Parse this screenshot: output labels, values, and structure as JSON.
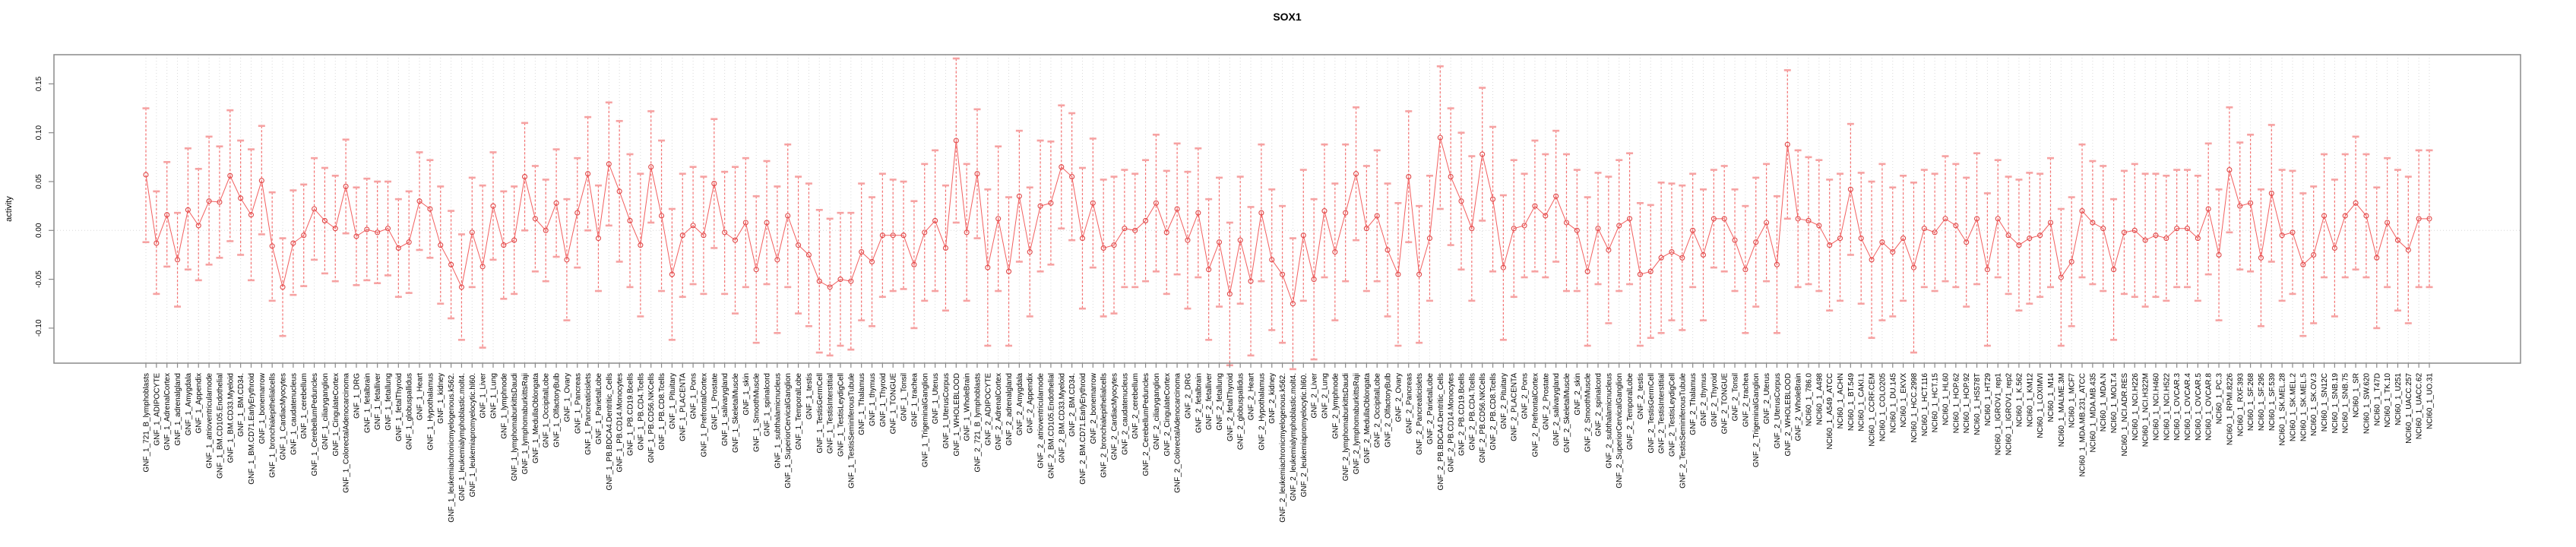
{
  "chart_data": {
    "type": "scatter",
    "subtype": "points-with-error-bars-connected-line",
    "title": "SOX1",
    "xlabel": "",
    "ylabel": "activity",
    "yticks": [
      0.15,
      0.1,
      0.05,
      0.0,
      -0.05,
      -0.1
    ],
    "ylim": [
      -0.136,
      0.178
    ],
    "grid": "dotted vertical gridline per category, dotted horizontal line at y=0",
    "legend_position": "none",
    "colors": {
      "line": "#f25f5f",
      "point_stroke": "#e04848",
      "whisker": "#f47070",
      "cap": "#f6a2a2",
      "grid": "#d9d9d9",
      "box": "#8a8a8a",
      "tick": "#666666",
      "text": "#000000",
      "background": "#ffffff"
    },
    "categories": [
      "GNF_1_721_B_lymphoblasts",
      "GNF_1_ADIPOCYTE",
      "GNF_1_AdrenalCortex",
      "GNF_1_adrenalgland",
      "GNF_1_Amygdala",
      "GNF_1_Appendix",
      "GNF_1_atrioventricularnode",
      "GNF_1_BM.CD105.Endothelial",
      "GNF_1_BM.CD33.Myeloid",
      "GNF_1_BM.CD34.",
      "GNF_1_BM.CD71.EarlyErythroid",
      "GNF_1_bonemarrow",
      "GNF_1_bronchialepithelialcells",
      "GNF_1_CardiacMyocytes",
      "GNF_1_caudatenucleus",
      "GNF_1_cerebellum",
      "GNF_1_CerebellumPeduncles",
      "GNF_1_ciliaryganglion",
      "GNF_1_CingulateCortex",
      "GNF_1_ColorectalAdenocarcinoma",
      "GNF_1_DRG",
      "GNF_1_fetalbrain",
      "GNF_1_fetalliver",
      "GNF_1_fetallung",
      "GNF_1_fetalThyroid",
      "GNF_1_globuspallidus",
      "GNF_1_Heart",
      "GNF_1_Hypothalamus",
      "GNF_1_kidney",
      "GNF_1_leukemiachronicmyelogenous.k562.",
      "GNF_1_leukemialymphoblastic.molt4.",
      "GNF_1_leukemiapromyelocytic.hl60.",
      "GNF_1_Liver",
      "GNF_1_Lung",
      "GNF_1_lymphnode",
      "GNF_1_lymphomaburkittsDaudi",
      "GNF_1_lymphomaburkittsRaji",
      "GNF_1_MedullaOblongata",
      "GNF_1_OccipitalLobe",
      "GNF_1_OlfactoryBulb",
      "GNF_1_Ovary",
      "GNF_1_Pancreas",
      "GNF_1_Pancreaticislets",
      "GNF_1_ParietalLobe",
      "GNF_1_PB.BDCA4.Dentritic_Cells",
      "GNF_1_PB.CD14.Monocytes",
      "GNF_1_PB.CD19.Bcells",
      "GNF_1_PB.CD4.Tcells",
      "GNF_1_PB.CD56.NKCells",
      "GNF_1_PB.CD8.Tcells",
      "GNF_1_Pituitary",
      "GNF_1_PLACENTA",
      "GNF_1_Pons",
      "GNF_1_PrefrontalCortex",
      "GNF_1_Prostate",
      "GNF_1_salivarygland",
      "GNF_1_SkeletalMuscle",
      "GNF_1_skin",
      "GNF_1_SmoothMuscle",
      "GNF_1_spinalcord",
      "GNF_1_subthalamicnucleus",
      "GNF_1_SuperiorCervicalGanglion",
      "GNF_1_TemporalLobe",
      "GNF_1_testis",
      "GNF_1_TestisGermCell",
      "GNF_1_TestisInterstitial",
      "GNF_1_TestisLeydigCell",
      "GNF_1_TestisSeminiferousTubule",
      "GNF_1_Thalamus",
      "GNF_1_thymus",
      "GNF_1_Thyroid",
      "GNF_1_TONGUE",
      "GNF_1_Tonsil",
      "GNF_1_trachea",
      "GNF_1_TrigeminalGanglion",
      "GNF_1_Uterus",
      "GNF_1_UterusCorpus",
      "GNF_1_WHOLEBLOOD",
      "GNF_1_WholeBrain",
      "GNF_2_721_B_lymphoblasts",
      "GNF_2_ADIPOCYTE",
      "GNF_2_AdrenalCortex",
      "GNF_2_adrenalgland",
      "GNF_2_Amygdala",
      "GNF_2_Appendix",
      "GNF_2_atrioventricularnode",
      "GNF_2_BM.CD105.Endothelial",
      "GNF_2_BM.CD33.Myeloid",
      "GNF_2_BM.CD34.",
      "GNF_2_BM.CD71.EarlyErythroid",
      "GNF_2_bonemarrow",
      "GNF_2_bronchialepithelialcells",
      "GNF_2_CardiacMyocytes",
      "GNF_2_caudatenucleus",
      "GNF_2_cerebellum",
      "GNF_2_CerebellumPeduncles",
      "GNF_2_ciliaryganglion",
      "GNF_2_CingulateCortex",
      "GNF_2_ColorectalAdenocarcinoma",
      "GNF_2_DRG",
      "GNF_2_fetalbrain",
      "GNF_2_fetalliver",
      "GNF_2_fetallung",
      "GNF_2_fetalThyroid",
      "GNF_2_globuspallidus",
      "GNF_2_Heart",
      "GNF_2_Hypothalamus",
      "GNF_2_kidney",
      "GNF_2_leukemiachronicmyelogenous.k562.",
      "GNF_2_leukemialymphoblastic.molt4.",
      "GNF_2_leukemiapromyelocytic.hl60.",
      "GNF_2_Liver",
      "GNF_2_Lung",
      "GNF_2_lymphnode",
      "GNF_2_lymphomaburkittsDaudi",
      "GNF_2_lymphomaburkittsRaji",
      "GNF_2_MedullaOblongata",
      "GNF_2_OccipitalLobe",
      "GNF_2_OlfactoryBulb",
      "GNF_2_Ovary",
      "GNF_2_Pancreas",
      "GNF_2_Pancreaticislets",
      "GNF_2_ParietalLobe",
      "GNF_2_PB.BDCA4.Dentritic_Cells",
      "GNF_2_PB.CD14.Monocytes",
      "GNF_2_PB.CD19.Bcells",
      "GNF_2_PB.CD4.Tcells",
      "GNF_2_PB.CD56.NKCells",
      "GNF_2_PB.CD8.Tcells",
      "GNF_2_Pituitary",
      "GNF_2_PLACENTA",
      "GNF_2_Pons",
      "GNF_2_PrefrontalCortex",
      "GNF_2_Prostate",
      "GNF_2_salivarygland",
      "GNF_2_SkeletalMuscle",
      "GNF_2_skin",
      "GNF_2_SmoothMuscle",
      "GNF_2_spinalcord",
      "GNF_2_subthalamicnucleus",
      "GNF_2_SuperiorCervicalGanglion",
      "GNF_2_TemporalLobe",
      "GNF_2_testis",
      "GNF_2_TestisGermCell",
      "GNF_2_TestisInterstitial",
      "GNF_2_TestisLeydigCell",
      "GNF_2_TestisSeminiferousTubule",
      "GNF_2_Thalamus",
      "GNF_2_thymus",
      "GNF_2_Thyroid",
      "GNF_2_TONGUE",
      "GNF_2_Tonsil",
      "GNF_2_trachea",
      "GNF_2_TrigeminalGanglion",
      "GNF_2_Uterus",
      "GNF_2_UterusCorpus",
      "GNF_2_WHOLEBLOOD",
      "GNF_2_WholeBrain",
      "NCI60_1_786.0",
      "NCI60_1_A498",
      "NCI60_1_A549_ATCC",
      "NCI60_1_ACHN",
      "NCI60_1_BT.549",
      "NCI60_1_CAKI.1",
      "NCI60_1_CCRF.CEM",
      "NCI60_1_COLO205",
      "NCI60_1_DU.145",
      "NCI60_1_EKVX",
      "NCI60_1_HCC.2998",
      "NCI60_1_HCT.116",
      "NCI60_1_HCT.15",
      "NCI60_1_HL60",
      "NCI60_1_HOP.62",
      "NCI60_1_HOP.92",
      "NCI60_1_HS578T",
      "NCI60_1_HT29",
      "NCI60_1_IGROV1_rep1",
      "NCI60_1_IGROV1_rep2",
      "NCI60_1_K.562",
      "NCI60_1_KM12",
      "NCI60_1_LOXIMVI",
      "NCI60_1_M14",
      "NCI60_1_MALME.3M",
      "NCI60_1_MCF7",
      "NCI60_1_MDA.MB.231_ATCC",
      "NCI60_1_MDA.MB.435",
      "NCI60_1_MDA.N",
      "NCI60_1_MOLT.4",
      "NCI60_1_NCI.ADR.RES",
      "NCI60_1_NCI.H226",
      "NCI60_1_NCI.H322M",
      "NCI60_1_NCI.H460",
      "NCI60_1_NCI.H522",
      "NCI60_1_OVCAR.3",
      "NCI60_1_OVCAR.4",
      "NCI60_1_OVCAR.5",
      "NCI60_1_OVCAR.8",
      "NCI60_1_PC.3",
      "NCI60_1_RPMI.8226",
      "NCI60_1_RXF.393",
      "NCI60_1_SF.268",
      "NCI60_1_SF.295",
      "NCI60_1_SF.539",
      "NCI60_1_SK.MEL.28",
      "NCI60_1_SK.MEL.2",
      "NCI60_1_SK.MEL.5",
      "NCI60_1_SK.OV.3",
      "NCI60_1_SN12C",
      "NCI60_1_SNB.19",
      "NCI60_1_SNB.75",
      "NCI60_1_SR",
      "NCI60_1_SW.620",
      "NCI60_1_T47D",
      "NCI60_1_TK.10",
      "NCI60_1_U251",
      "NCI60_1_UACC.257",
      "NCI60_1_UACC.62",
      "NCI60_1_UO.31"
    ],
    "series": [
      {
        "name": "activity",
        "mean": [
          0.057,
          -0.013,
          0.016,
          -0.03,
          0.021,
          0.005,
          0.03,
          0.029,
          0.056,
          0.033,
          0.016,
          0.051,
          -0.016,
          -0.058,
          -0.013,
          -0.005,
          0.022,
          0.01,
          0.002,
          0.045,
          -0.006,
          0.001,
          -0.002,
          0.002,
          -0.018,
          -0.012,
          0.03,
          0.022,
          -0.015,
          -0.035,
          -0.058,
          -0.002,
          -0.037,
          0.025,
          -0.015,
          -0.01,
          0.055,
          0.012,
          0.0,
          0.028,
          -0.03,
          0.018,
          0.058,
          -0.008,
          0.068,
          0.04,
          0.01,
          -0.015,
          0.065,
          0.015,
          -0.045,
          -0.005,
          0.005,
          -0.005,
          0.048,
          -0.002,
          -0.01,
          0.008,
          -0.04,
          0.008,
          -0.03,
          0.015,
          -0.015,
          -0.025,
          -0.052,
          -0.058,
          -0.05,
          -0.052,
          -0.022,
          -0.032,
          -0.005,
          -0.005,
          -0.005,
          -0.035,
          -0.002,
          0.01,
          -0.018,
          0.092,
          -0.002,
          0.058,
          -0.038,
          0.012,
          -0.042,
          0.035,
          -0.022,
          0.025,
          0.028,
          0.065,
          0.055,
          -0.008,
          0.028,
          -0.018,
          -0.015,
          0.002,
          0.0,
          0.01,
          0.028,
          -0.002,
          0.022,
          -0.01,
          0.018,
          -0.04,
          -0.012,
          -0.065,
          -0.01,
          -0.052,
          0.018,
          -0.03,
          -0.045,
          -0.075,
          -0.005,
          -0.05,
          0.02,
          -0.022,
          0.018,
          0.058,
          0.002,
          0.015,
          -0.02,
          -0.045,
          0.055,
          -0.045,
          -0.008,
          0.095,
          0.055,
          0.03,
          0.002,
          0.078,
          0.032,
          -0.038,
          0.002,
          0.005,
          0.025,
          0.015,
          0.035,
          0.008,
          0.0,
          -0.042,
          0.002,
          -0.02,
          0.005,
          0.012,
          -0.045,
          -0.042,
          -0.028,
          -0.022,
          -0.028,
          0.0,
          -0.025,
          0.012,
          0.012,
          -0.01,
          -0.04,
          -0.012,
          0.008,
          -0.035,
          0.088,
          0.012,
          0.01,
          0.005,
          -0.015,
          -0.008,
          0.042,
          -0.008,
          -0.03,
          -0.012,
          -0.022,
          -0.008,
          -0.038,
          0.002,
          -0.002,
          0.012,
          0.005,
          -0.012,
          0.012,
          -0.04,
          0.012,
          -0.005,
          -0.015,
          -0.008,
          -0.005,
          0.008,
          -0.048,
          -0.032,
          0.02,
          0.008,
          0.002,
          -0.04,
          -0.002,
          0.0,
          -0.01,
          -0.005,
          -0.008,
          0.002,
          0.002,
          -0.008,
          0.022,
          -0.025,
          0.062,
          0.025,
          0.028,
          -0.028,
          0.038,
          -0.005,
          -0.002,
          -0.035,
          -0.025,
          0.015,
          -0.018,
          0.015,
          0.028,
          0.015,
          -0.028,
          0.008,
          -0.01,
          -0.02,
          0.012,
          0.012
        ],
        "lower": [
          -0.012,
          -0.065,
          -0.037,
          -0.078,
          -0.04,
          -0.051,
          -0.035,
          -0.028,
          -0.011,
          -0.025,
          -0.051,
          -0.004,
          -0.072,
          -0.108,
          -0.066,
          -0.057,
          -0.03,
          -0.044,
          -0.052,
          -0.003,
          -0.056,
          -0.051,
          -0.054,
          -0.046,
          -0.068,
          -0.064,
          -0.02,
          -0.028,
          -0.075,
          -0.09,
          -0.112,
          -0.058,
          -0.12,
          -0.03,
          -0.07,
          -0.065,
          0.0,
          -0.042,
          -0.052,
          -0.027,
          -0.092,
          -0.038,
          0.0,
          -0.062,
          0.005,
          -0.032,
          -0.058,
          -0.088,
          0.008,
          -0.062,
          -0.112,
          -0.068,
          -0.055,
          -0.065,
          -0.018,
          -0.065,
          -0.085,
          -0.058,
          -0.115,
          -0.055,
          -0.105,
          -0.058,
          -0.085,
          -0.098,
          -0.125,
          -0.128,
          -0.118,
          -0.122,
          -0.092,
          -0.098,
          -0.068,
          -0.062,
          -0.06,
          -0.1,
          -0.072,
          -0.062,
          -0.082,
          0.008,
          -0.072,
          -0.008,
          -0.118,
          -0.062,
          -0.118,
          -0.032,
          -0.088,
          -0.042,
          -0.035,
          0.002,
          -0.01,
          -0.08,
          -0.038,
          -0.088,
          -0.085,
          -0.058,
          -0.058,
          -0.052,
          -0.042,
          -0.065,
          -0.045,
          -0.08,
          -0.048,
          -0.112,
          -0.078,
          -0.138,
          -0.075,
          -0.128,
          -0.052,
          -0.102,
          -0.115,
          -0.142,
          -0.072,
          -0.132,
          -0.048,
          -0.092,
          -0.052,
          -0.01,
          -0.062,
          -0.052,
          -0.088,
          -0.118,
          -0.012,
          -0.115,
          -0.072,
          0.022,
          -0.015,
          -0.04,
          -0.072,
          0.01,
          -0.042,
          -0.112,
          -0.068,
          -0.048,
          -0.042,
          -0.048,
          -0.032,
          -0.062,
          -0.062,
          -0.118,
          -0.055,
          -0.095,
          -0.062,
          -0.055,
          -0.118,
          -0.11,
          -0.105,
          -0.092,
          -0.102,
          -0.058,
          -0.092,
          -0.038,
          -0.042,
          -0.062,
          -0.105,
          -0.078,
          -0.052,
          -0.105,
          0.012,
          -0.058,
          -0.055,
          -0.062,
          -0.082,
          -0.072,
          -0.025,
          -0.075,
          -0.11,
          -0.092,
          -0.088,
          -0.072,
          -0.125,
          -0.058,
          -0.062,
          -0.052,
          -0.058,
          -0.078,
          -0.055,
          -0.118,
          -0.048,
          -0.065,
          -0.082,
          -0.075,
          -0.068,
          -0.058,
          -0.118,
          -0.098,
          -0.048,
          -0.055,
          -0.062,
          -0.112,
          -0.065,
          -0.068,
          -0.078,
          -0.068,
          -0.072,
          -0.058,
          -0.058,
          -0.072,
          -0.045,
          -0.092,
          -0.002,
          -0.04,
          -0.042,
          -0.098,
          -0.032,
          -0.072,
          -0.065,
          -0.108,
          -0.095,
          -0.048,
          -0.088,
          -0.048,
          -0.04,
          -0.048,
          -0.1,
          -0.058,
          -0.082,
          -0.095,
          -0.058,
          -0.058
        ],
        "upper": [
          0.125,
          0.04,
          0.07,
          0.018,
          0.084,
          0.063,
          0.096,
          0.086,
          0.123,
          0.092,
          0.083,
          0.107,
          0.039,
          -0.008,
          0.041,
          0.047,
          0.074,
          0.064,
          0.056,
          0.093,
          0.044,
          0.053,
          0.05,
          0.05,
          0.032,
          0.04,
          0.08,
          0.072,
          0.045,
          0.02,
          -0.004,
          0.054,
          0.046,
          0.08,
          0.04,
          0.045,
          0.11,
          0.066,
          0.052,
          0.083,
          0.032,
          0.074,
          0.116,
          0.046,
          0.131,
          0.112,
          0.078,
          0.058,
          0.122,
          0.092,
          0.022,
          0.058,
          0.065,
          0.055,
          0.114,
          0.06,
          0.065,
          0.074,
          0.035,
          0.071,
          0.045,
          0.088,
          0.055,
          0.048,
          0.021,
          0.012,
          0.018,
          0.018,
          0.048,
          0.034,
          0.058,
          0.052,
          0.05,
          0.03,
          0.068,
          0.082,
          0.046,
          0.176,
          0.068,
          0.124,
          0.042,
          0.086,
          0.034,
          0.102,
          0.044,
          0.092,
          0.091,
          0.128,
          0.12,
          0.064,
          0.094,
          0.052,
          0.055,
          0.062,
          0.058,
          0.072,
          0.098,
          0.061,
          0.089,
          0.06,
          0.084,
          0.032,
          0.054,
          0.008,
          0.055,
          0.024,
          0.088,
          0.042,
          0.025,
          -0.008,
          0.062,
          0.032,
          0.088,
          0.048,
          0.088,
          0.126,
          0.066,
          0.082,
          0.048,
          0.028,
          0.122,
          0.025,
          0.056,
          0.168,
          0.125,
          0.1,
          0.076,
          0.146,
          0.106,
          0.036,
          0.072,
          0.058,
          0.092,
          0.078,
          0.102,
          0.078,
          0.062,
          0.034,
          0.059,
          0.055,
          0.072,
          0.079,
          0.028,
          0.026,
          0.049,
          0.048,
          0.046,
          0.058,
          0.042,
          0.062,
          0.066,
          0.042,
          0.025,
          0.054,
          0.068,
          0.035,
          0.164,
          0.082,
          0.075,
          0.072,
          0.052,
          0.058,
          0.109,
          0.059,
          0.05,
          0.068,
          0.044,
          0.056,
          0.049,
          0.062,
          0.058,
          0.076,
          0.068,
          0.054,
          0.079,
          0.038,
          0.072,
          0.055,
          0.052,
          0.059,
          0.058,
          0.074,
          0.022,
          0.034,
          0.088,
          0.071,
          0.066,
          0.032,
          0.061,
          0.068,
          0.058,
          0.058,
          0.056,
          0.062,
          0.062,
          0.056,
          0.089,
          0.042,
          0.126,
          0.09,
          0.098,
          0.042,
          0.108,
          0.062,
          0.061,
          0.038,
          0.045,
          0.078,
          0.052,
          0.078,
          0.096,
          0.078,
          0.044,
          0.074,
          0.062,
          0.055,
          0.082,
          0.082
        ]
      }
    ]
  }
}
